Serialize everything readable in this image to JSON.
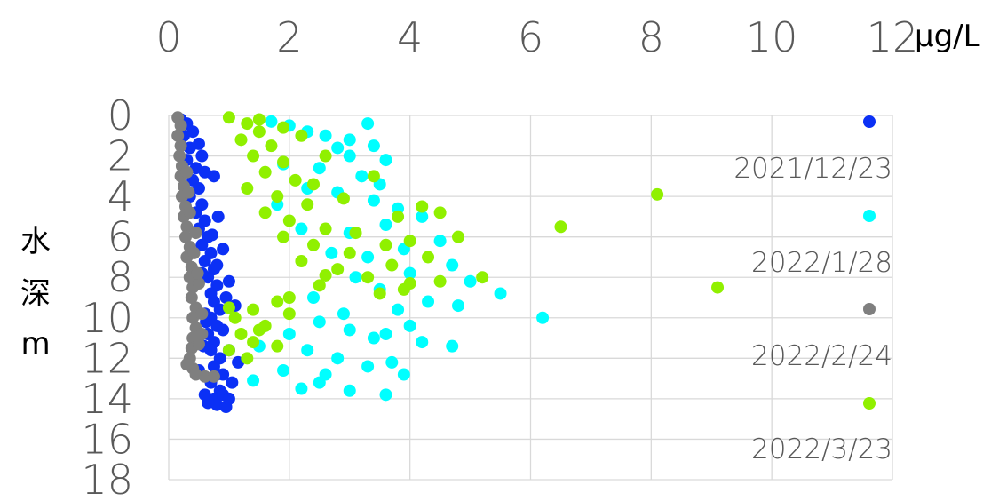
{
  "chart_data": {
    "type": "scatter",
    "x_axis": {
      "position": "top",
      "unit": "μg/L",
      "range": [
        0,
        12
      ],
      "ticks": [
        "0",
        "2",
        "4",
        "6",
        "8",
        "10",
        "12"
      ]
    },
    "y_axis": {
      "label": "水深m",
      "label_chars": [
        "水",
        "深",
        "m"
      ],
      "reversed": true,
      "range": [
        0,
        18
      ],
      "ticks": [
        "0",
        "2",
        "4",
        "6",
        "8",
        "10",
        "12",
        "14",
        "16",
        "18"
      ]
    },
    "grid": true,
    "legend_position": "right",
    "series": [
      {
        "name": "2021/12/23",
        "color": "#0b30f5",
        "points": [
          [
            0.2,
            0.2
          ],
          [
            0.3,
            0.4
          ],
          [
            0.25,
            1.0
          ],
          [
            0.4,
            0.8
          ],
          [
            0.35,
            1.6
          ],
          [
            0.5,
            1.4
          ],
          [
            0.3,
            2.2
          ],
          [
            0.45,
            2.6
          ],
          [
            0.6,
            2.8
          ],
          [
            0.4,
            3.2
          ],
          [
            0.5,
            3.6
          ],
          [
            0.35,
            4.0
          ],
          [
            0.55,
            4.4
          ],
          [
            0.45,
            4.8
          ],
          [
            0.6,
            5.2
          ],
          [
            0.5,
            5.6
          ],
          [
            0.65,
            6.0
          ],
          [
            0.55,
            6.4
          ],
          [
            0.7,
            6.8
          ],
          [
            0.6,
            7.2
          ],
          [
            0.75,
            7.6
          ],
          [
            0.65,
            8.0
          ],
          [
            0.8,
            8.4
          ],
          [
            0.7,
            8.8
          ],
          [
            0.75,
            9.2
          ],
          [
            0.85,
            9.6
          ],
          [
            0.7,
            10.0
          ],
          [
            0.8,
            10.4
          ],
          [
            0.65,
            10.8
          ],
          [
            0.75,
            11.2
          ],
          [
            0.7,
            11.6
          ],
          [
            0.85,
            12.0
          ],
          [
            0.75,
            12.4
          ],
          [
            0.8,
            12.8
          ],
          [
            0.7,
            13.2
          ],
          [
            0.85,
            13.6
          ],
          [
            0.75,
            14.0
          ],
          [
            0.8,
            14.3
          ],
          [
            0.95,
            14.4
          ],
          [
            0.65,
            14.2
          ],
          [
            0.9,
            13.8
          ],
          [
            0.55,
            2.0
          ],
          [
            0.75,
            3.0
          ],
          [
            0.82,
            5.0
          ],
          [
            0.9,
            6.6
          ],
          [
            0.8,
            7.4
          ],
          [
            1.0,
            8.2
          ],
          [
            0.95,
            9.0
          ],
          [
            1.1,
            9.4
          ],
          [
            0.9,
            10.6
          ],
          [
            1.0,
            11.6
          ],
          [
            1.15,
            12.2
          ],
          [
            0.6,
            9.8
          ],
          [
            0.5,
            12.6
          ],
          [
            0.9,
            12.8
          ],
          [
            1.05,
            13.2
          ],
          [
            1.0,
            14.0
          ],
          [
            0.6,
            13.8
          ],
          [
            0.72,
            5.9
          ],
          [
            0.55,
            7.8
          ],
          [
            0.62,
            10.2
          ],
          [
            0.58,
            11.4
          ]
        ]
      },
      {
        "name": "2022/1/28",
        "color": "#00ffff",
        "points": [
          [
            1.7,
            0.3
          ],
          [
            2.0,
            0.5
          ],
          [
            2.3,
            0.8
          ],
          [
            2.6,
            1.0
          ],
          [
            3.0,
            1.2
          ],
          [
            3.3,
            0.4
          ],
          [
            3.4,
            1.5
          ],
          [
            3.0,
            2.0
          ],
          [
            3.6,
            2.2
          ],
          [
            2.5,
            2.6
          ],
          [
            3.2,
            3.0
          ],
          [
            3.5,
            3.4
          ],
          [
            2.8,
            3.8
          ],
          [
            3.4,
            4.2
          ],
          [
            3.8,
            4.6
          ],
          [
            4.2,
            5.0
          ],
          [
            3.6,
            5.4
          ],
          [
            3.0,
            5.8
          ],
          [
            4.5,
            6.2
          ],
          [
            3.9,
            6.6
          ],
          [
            3.3,
            7.0
          ],
          [
            4.7,
            7.4
          ],
          [
            4.0,
            7.8
          ],
          [
            5.0,
            8.2
          ],
          [
            3.5,
            8.6
          ],
          [
            5.5,
            8.8
          ],
          [
            4.3,
            9.2
          ],
          [
            6.2,
            10.0
          ],
          [
            3.8,
            9.6
          ],
          [
            4.8,
            9.4
          ],
          [
            2.5,
            10.2
          ],
          [
            3.0,
            10.6
          ],
          [
            3.6,
            10.8
          ],
          [
            4.2,
            11.2
          ],
          [
            2.3,
            11.6
          ],
          [
            2.8,
            12.0
          ],
          [
            3.3,
            12.4
          ],
          [
            3.9,
            12.8
          ],
          [
            2.5,
            13.2
          ],
          [
            3.0,
            13.6
          ],
          [
            3.6,
            13.8
          ],
          [
            2.2,
            13.5
          ],
          [
            1.9,
            12.6
          ],
          [
            1.5,
            11.4
          ],
          [
            1.4,
            13.1
          ],
          [
            2.6,
            12.8
          ],
          [
            2.0,
            10.8
          ],
          [
            2.4,
            9.0
          ],
          [
            3.1,
            8.0
          ],
          [
            2.7,
            6.8
          ],
          [
            2.2,
            5.6
          ],
          [
            1.8,
            4.4
          ],
          [
            2.3,
            3.6
          ],
          [
            1.9,
            2.4
          ],
          [
            2.8,
            1.6
          ],
          [
            4.7,
            11.4
          ],
          [
            4.0,
            10.4
          ],
          [
            3.4,
            11.0
          ],
          [
            2.9,
            9.8
          ],
          [
            3.7,
            12.2
          ]
        ]
      },
      {
        "name": "2022/2/24",
        "color": "#7f7f7f",
        "points": [
          [
            0.15,
            0.1
          ],
          [
            0.2,
            0.5
          ],
          [
            0.15,
            1.0
          ],
          [
            0.2,
            1.5
          ],
          [
            0.18,
            2.0
          ],
          [
            0.22,
            2.5
          ],
          [
            0.2,
            3.0
          ],
          [
            0.25,
            3.5
          ],
          [
            0.22,
            4.0
          ],
          [
            0.28,
            4.5
          ],
          [
            0.25,
            5.0
          ],
          [
            0.3,
            5.5
          ],
          [
            0.28,
            6.0
          ],
          [
            0.35,
            6.5
          ],
          [
            0.3,
            7.0
          ],
          [
            0.38,
            7.5
          ],
          [
            0.35,
            8.0
          ],
          [
            0.4,
            8.5
          ],
          [
            0.38,
            9.0
          ],
          [
            0.45,
            9.5
          ],
          [
            0.4,
            10.0
          ],
          [
            0.45,
            10.5
          ],
          [
            0.4,
            11.0
          ],
          [
            0.38,
            11.5
          ],
          [
            0.35,
            12.0
          ],
          [
            0.4,
            12.5
          ],
          [
            0.45,
            12.8
          ],
          [
            0.6,
            12.9
          ],
          [
            0.75,
            12.9
          ],
          [
            0.3,
            2.8
          ],
          [
            0.35,
            4.8
          ],
          [
            0.42,
            6.8
          ],
          [
            0.5,
            8.3
          ],
          [
            0.55,
            9.8
          ],
          [
            0.5,
            11.3
          ],
          [
            0.33,
            3.8
          ],
          [
            0.45,
            5.8
          ],
          [
            0.48,
            7.8
          ],
          [
            0.55,
            10.8
          ],
          [
            0.3,
            12.3
          ]
        ]
      },
      {
        "name": "2022/3/23",
        "color": "#90f000",
        "points": [
          [
            1.0,
            0.1
          ],
          [
            1.3,
            0.4
          ],
          [
            1.5,
            0.8
          ],
          [
            1.2,
            1.2
          ],
          [
            1.7,
            1.5
          ],
          [
            1.4,
            2.0
          ],
          [
            1.9,
            2.3
          ],
          [
            1.6,
            2.8
          ],
          [
            2.1,
            3.2
          ],
          [
            1.3,
            3.6
          ],
          [
            1.8,
            4.0
          ],
          [
            2.3,
            4.4
          ],
          [
            1.6,
            4.8
          ],
          [
            2.0,
            5.2
          ],
          [
            2.6,
            5.6
          ],
          [
            1.9,
            6.0
          ],
          [
            2.4,
            6.4
          ],
          [
            3.0,
            6.8
          ],
          [
            2.2,
            7.2
          ],
          [
            2.8,
            7.6
          ],
          [
            3.3,
            8.0
          ],
          [
            2.5,
            8.4
          ],
          [
            3.5,
            8.8
          ],
          [
            1.8,
            9.2
          ],
          [
            1.4,
            9.6
          ],
          [
            1.1,
            10.0
          ],
          [
            1.6,
            10.4
          ],
          [
            1.2,
            10.8
          ],
          [
            1.4,
            11.2
          ],
          [
            1.0,
            11.6
          ],
          [
            1.3,
            12.0
          ],
          [
            1.8,
            11.4
          ],
          [
            2.0,
            9.8
          ],
          [
            3.8,
            5.0
          ],
          [
            4.0,
            6.2
          ],
          [
            4.3,
            7.0
          ],
          [
            4.5,
            8.2
          ],
          [
            4.8,
            6.0
          ],
          [
            5.2,
            8.0
          ],
          [
            6.5,
            5.5
          ],
          [
            8.1,
            3.9
          ],
          [
            9.1,
            8.5
          ],
          [
            4.2,
            4.5
          ],
          [
            3.7,
            7.4
          ],
          [
            2.9,
            4.1
          ],
          [
            3.4,
            3.0
          ],
          [
            2.6,
            2.0
          ],
          [
            2.2,
            1.0
          ],
          [
            1.5,
            0.2
          ],
          [
            1.9,
            0.6
          ],
          [
            2.6,
            7.9
          ],
          [
            3.1,
            5.8
          ],
          [
            3.9,
            8.6
          ],
          [
            4.5,
            4.8
          ],
          [
            2.0,
            9.0
          ],
          [
            1.5,
            10.6
          ],
          [
            1.0,
            9.5
          ],
          [
            2.4,
            3.4
          ],
          [
            3.6,
            6.4
          ],
          [
            4.0,
            8.3
          ]
        ]
      }
    ]
  }
}
